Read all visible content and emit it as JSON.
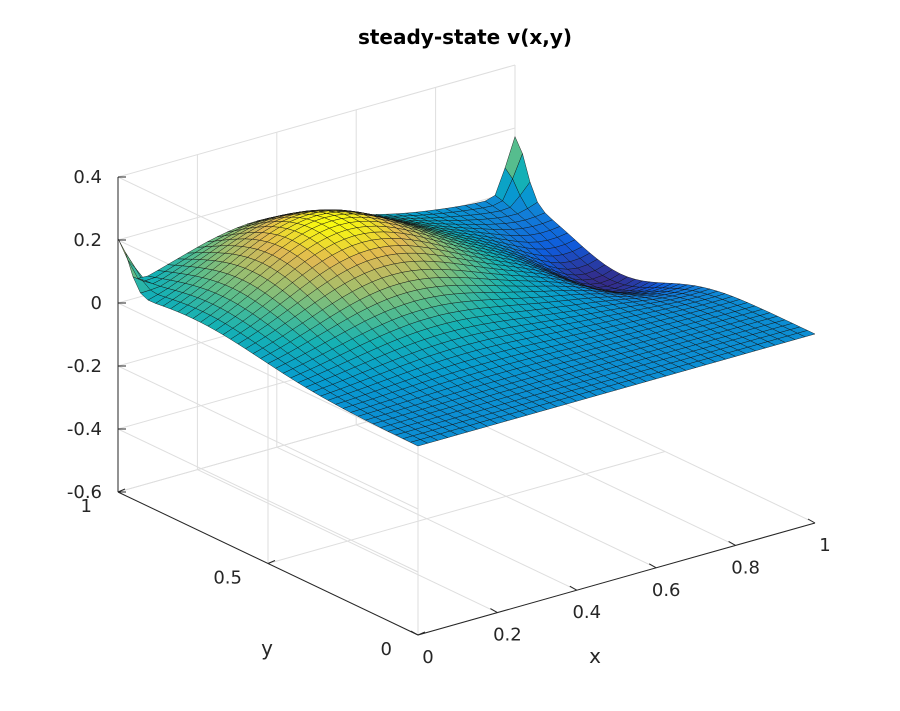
{
  "chart_data": {
    "type": "surface",
    "title": "steady-state v(x,y)",
    "xlabel": "x",
    "ylabel": "y",
    "zlabel": "",
    "xlim": [
      0,
      1
    ],
    "ylim": [
      0,
      1
    ],
    "zlim": [
      -0.6,
      0.4
    ],
    "x_ticks": [
      0,
      0.2,
      0.4,
      0.6,
      0.8,
      1
    ],
    "x_tick_labels": [
      "0",
      "0.2",
      "0.4",
      "0.6",
      "0.8",
      "1"
    ],
    "y_ticks": [
      0,
      0.5,
      1
    ],
    "y_tick_labels": [
      "0",
      "0.5",
      "1"
    ],
    "z_ticks": [
      -0.6,
      -0.4,
      -0.2,
      0,
      0.2,
      0.4
    ],
    "z_tick_labels": [
      "-0.6",
      "-0.4",
      "-0.2",
      "0",
      "0.2",
      "0.4"
    ],
    "grid": true,
    "colormap": "parula",
    "mesh_resolution": 41,
    "features": [
      {
        "name": "broad-ridge",
        "x": 0.35,
        "y": 0.75,
        "peak_v": 0.25
      },
      {
        "name": "corner-spike",
        "x": 0.0,
        "y": 1.0,
        "peak_v": 0.17
      },
      {
        "name": "edge-spike",
        "x": 1.0,
        "y": 1.0,
        "peak_v": 0.18
      },
      {
        "name": "trough",
        "x": 0.95,
        "y": 0.65,
        "min_v": -0.12
      }
    ]
  }
}
